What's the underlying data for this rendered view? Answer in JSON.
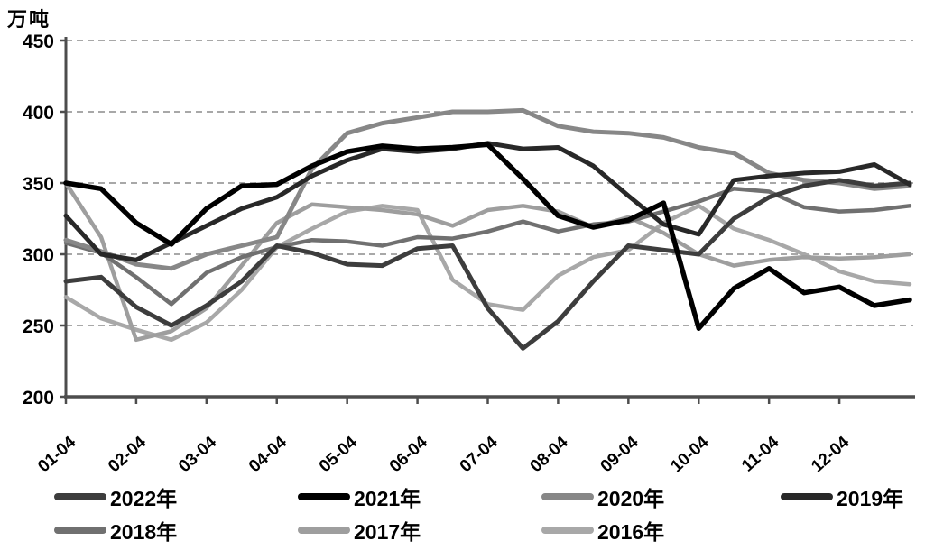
{
  "unit_label": "万吨",
  "legend": {
    "row1": [
      {
        "series": "2022",
        "label": "2022年"
      },
      {
        "series": "2021",
        "label": "2021年"
      },
      {
        "series": "2020",
        "label": "2020年"
      },
      {
        "series": "2019",
        "label": "2019年"
      }
    ],
    "row2": [
      {
        "series": "2018",
        "label": "2018年"
      },
      {
        "series": "2017",
        "label": "2017年"
      },
      {
        "series": "2016",
        "label": "2016年"
      }
    ]
  },
  "chart_data": {
    "type": "line",
    "title": "万吨",
    "ylabel": "万吨 (10k tons)",
    "xlabel": "",
    "ylim": [
      200,
      450
    ],
    "yticks": [
      450,
      400,
      350,
      300,
      250,
      200
    ],
    "grid": "horizontal-dashed",
    "legend_position": "bottom",
    "x_tick_labels": [
      "01-04",
      "02-04",
      "03-04",
      "04-04",
      "05-04",
      "06-04",
      "07-04",
      "08-04",
      "09-04",
      "10-04",
      "11-04",
      "12-04"
    ],
    "x_sample_dates": [
      "01-04",
      "01-18",
      "02-04",
      "02-18",
      "03-04",
      "03-18",
      "04-04",
      "04-18",
      "05-04",
      "05-18",
      "06-04",
      "06-18",
      "07-04",
      "07-18",
      "08-04",
      "08-18",
      "09-04",
      "09-18",
      "10-04",
      "10-18",
      "11-04",
      "11-18",
      "12-04",
      "12-18",
      "12-30"
    ],
    "series": [
      {
        "name": "2016年",
        "key": "2016",
        "color": "#a8a8a8",
        "width": 4.5,
        "values": [
          270,
          255,
          247,
          240,
          252,
          275,
          305,
          318,
          330,
          334,
          331,
          282,
          265,
          261,
          285,
          298,
          303,
          322,
          334,
          318,
          310,
          300,
          288,
          281,
          279
        ]
      },
      {
        "name": "2017年",
        "key": "2017",
        "color": "#9e9e9e",
        "width": 4.5,
        "values": [
          350,
          312,
          240,
          246,
          262,
          292,
          322,
          335,
          333,
          331,
          328,
          320,
          331,
          334,
          330,
          319,
          326,
          315,
          300,
          292,
          296,
          298,
          297,
          298,
          300
        ]
      },
      {
        "name": "2018年",
        "key": "2018",
        "color": "#707070",
        "width": 4.5,
        "values": [
          308,
          301,
          284,
          265,
          287,
          298,
          305,
          310,
          309,
          306,
          312,
          311,
          316,
          323,
          316,
          321,
          323,
          330,
          337,
          346,
          344,
          333,
          330,
          331,
          334
        ]
      },
      {
        "name": "2020年",
        "key": "2020",
        "color": "#878787",
        "width": 5,
        "values": [
          310,
          302,
          293,
          290,
          300,
          306,
          312,
          360,
          385,
          392,
          396,
          400,
          400,
          401,
          390,
          386,
          385,
          382,
          375,
          371,
          357,
          352,
          350,
          346,
          348
        ]
      },
      {
        "name": "2022年",
        "key": "2022",
        "color": "#3d3d3d",
        "width": 5,
        "values": [
          281,
          284,
          263,
          250,
          264,
          281,
          306,
          301,
          293,
          292,
          304,
          306,
          262,
          234,
          253,
          281,
          306,
          303,
          300,
          325,
          340,
          348,
          352,
          348,
          350
        ]
      },
      {
        "name": "2019年",
        "key": "2019",
        "color": "#282828",
        "width": 5,
        "values": [
          327,
          300,
          296,
          308,
          320,
          332,
          340,
          355,
          366,
          374,
          372,
          374,
          378,
          374,
          375,
          362,
          341,
          321,
          314,
          352,
          355,
          357,
          358,
          363,
          349
        ]
      },
      {
        "name": "2021年",
        "key": "2021",
        "color": "#000000",
        "width": 5.5,
        "values": [
          350,
          346,
          322,
          307,
          332,
          348,
          349,
          362,
          372,
          376,
          374,
          375,
          377,
          353,
          327,
          319,
          324,
          336,
          248,
          276,
          290,
          273,
          277,
          264,
          268
        ]
      }
    ]
  }
}
